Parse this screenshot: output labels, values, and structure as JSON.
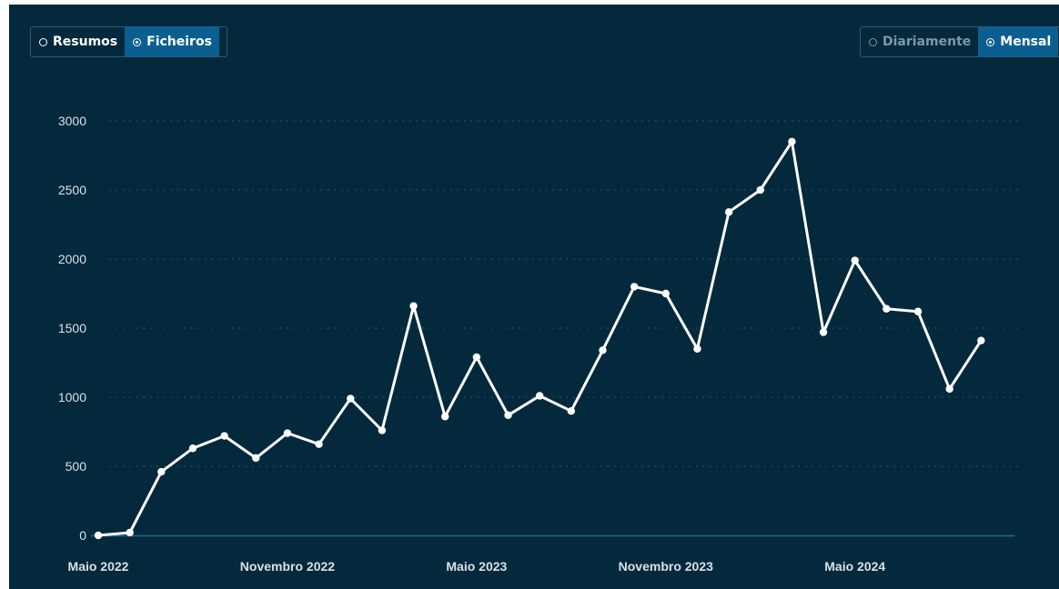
{
  "toggles": {
    "mode": {
      "options": [
        "Resumos",
        "Ficheiros"
      ],
      "selected": "Ficheiros"
    },
    "period": {
      "options": [
        "Diariamente",
        "Mensal"
      ],
      "selected": "Mensal"
    }
  },
  "colors": {
    "background": "#05293c",
    "line": "#ffffff",
    "accent": "#0a5f90",
    "axis": "#1c6b8f"
  },
  "chart_data": {
    "type": "line",
    "title": "",
    "xlabel": "",
    "ylabel": "",
    "ylim": [
      0,
      3000
    ],
    "yticks": [
      0,
      500,
      1000,
      1500,
      2000,
      2500,
      3000
    ],
    "grid": true,
    "x": [
      "2022-05",
      "2022-06",
      "2022-07",
      "2022-08",
      "2022-09",
      "2022-10",
      "2022-11",
      "2022-12",
      "2023-01",
      "2023-02",
      "2023-03",
      "2023-04",
      "2023-05",
      "2023-06",
      "2023-07",
      "2023-08",
      "2023-09",
      "2023-10",
      "2023-11",
      "2023-12",
      "2024-01",
      "2024-02",
      "2024-03",
      "2024-04",
      "2024-05",
      "2024-06",
      "2024-07",
      "2024-08",
      "2024-09",
      "2024-10"
    ],
    "xtick_labels": [
      {
        "x": "2022-05",
        "label": "Maio 2022"
      },
      {
        "x": "2022-11",
        "label": "Novembro 2022"
      },
      {
        "x": "2023-05",
        "label": "Maio 2023"
      },
      {
        "x": "2023-11",
        "label": "Novembro 2023"
      },
      {
        "x": "2024-05",
        "label": "Maio 2024"
      }
    ],
    "series": [
      {
        "values": [
          0,
          20,
          460,
          630,
          720,
          560,
          740,
          660,
          990,
          760,
          1660,
          860,
          1290,
          870,
          1010,
          900,
          1340,
          1800,
          1750,
          1350,
          2340,
          2500,
          2850,
          1470,
          1990,
          1640,
          1620,
          1060,
          1410,
          null
        ]
      }
    ]
  }
}
